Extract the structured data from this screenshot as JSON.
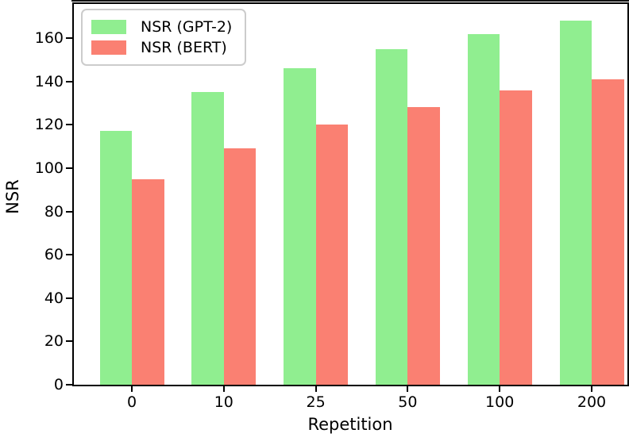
{
  "chart_data": {
    "type": "bar",
    "title": "",
    "xlabel": "Repetition",
    "ylabel": "NSR",
    "categories": [
      "0",
      "10",
      "25",
      "50",
      "100",
      "200"
    ],
    "series": [
      {
        "name": "NSR (GPT-2)",
        "color": "#90EE90",
        "values": [
          117,
          135,
          146,
          155,
          162,
          168
        ]
      },
      {
        "name": "NSR (BERT)",
        "color": "#FA8072",
        "values": [
          95,
          109,
          120,
          128,
          136,
          141
        ]
      }
    ],
    "yticks": [
      0,
      20,
      40,
      60,
      80,
      100,
      120,
      140,
      160
    ],
    "ylim": [
      0,
      176
    ],
    "bar_group_width": 0.7,
    "legend_position": "upper left",
    "grid": false
  }
}
